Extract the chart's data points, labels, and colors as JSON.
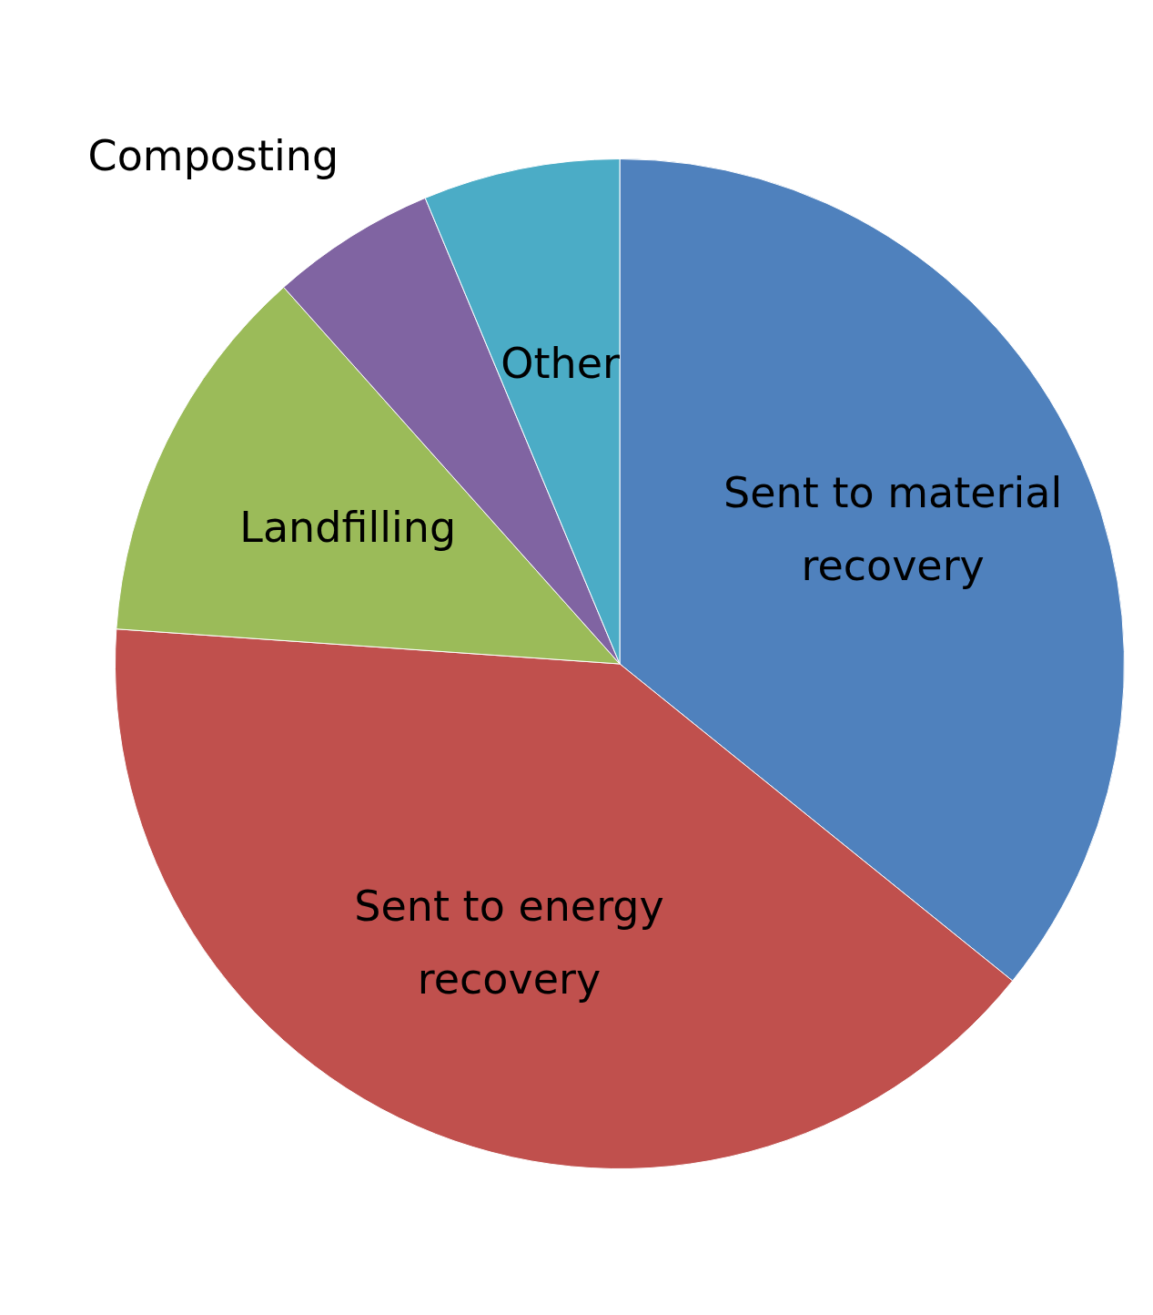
{
  "chart_data": {
    "type": "pie",
    "categories": [
      "Sent to material recovery",
      "Sent to energy recovery",
      "Landfilling",
      "Composting",
      "Other"
    ],
    "values": [
      35.8,
      40.3,
      12.3,
      5.3,
      6.3
    ],
    "colors": [
      "#4f81bd",
      "#c0504d",
      "#9bbb59",
      "#8064a2",
      "#4bacc6"
    ],
    "legend": false
  }
}
